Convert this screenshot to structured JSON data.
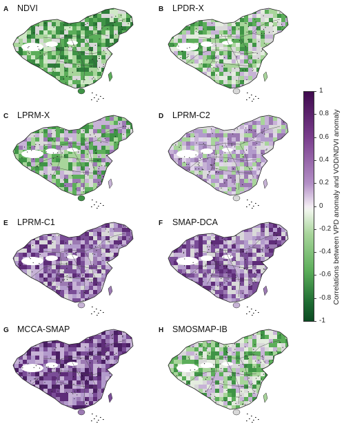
{
  "panels": [
    {
      "letter": "A",
      "name": "NDVI",
      "palette": "green"
    },
    {
      "letter": "B",
      "name": "LPDR-X",
      "palette": "mixed_green"
    },
    {
      "letter": "C",
      "name": "LPRM-X",
      "palette": "mixed"
    },
    {
      "letter": "D",
      "name": "LPRM-C2",
      "palette": "purple_light"
    },
    {
      "letter": "E",
      "name": "LPRM-C1",
      "palette": "purple"
    },
    {
      "letter": "F",
      "name": "SMAP-DCA",
      "palette": "purple"
    },
    {
      "letter": "G",
      "name": "MCCA-SMAP",
      "palette": "purple_dark"
    },
    {
      "letter": "H",
      "name": "SMOSMAP-IB",
      "palette": "mixed_green"
    }
  ],
  "colorbar": {
    "label": "Correlations between VPD anomaly and VOD/NDVI anomaly",
    "ticks": [
      "1",
      "0.8",
      "0.6",
      "0.4",
      "0.2",
      "0",
      "-0.2",
      "-0.4",
      "-0.6",
      "-0.8",
      "-1"
    ],
    "range": [
      -1,
      1
    ]
  },
  "colors": {
    "border": "#222222",
    "land_base": "#d9d9d9",
    "nodata": "#ffffff"
  }
}
